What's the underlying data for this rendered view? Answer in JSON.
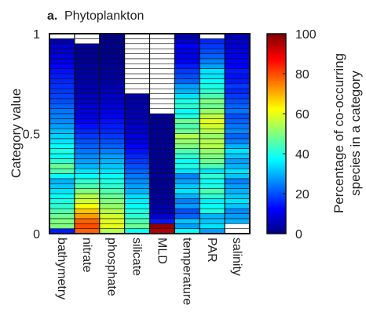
{
  "chart_data": {
    "type": "heatmap",
    "title_prefix": "a.",
    "title": "Phytoplankton",
    "ylabel": "Category value",
    "ylim": [
      0,
      1
    ],
    "y_ticks": [
      {
        "value": 0,
        "label": "0"
      },
      {
        "value": 0.5,
        "label": "0.5"
      },
      {
        "value": 1,
        "label": "1"
      }
    ],
    "categories": [
      "bathymetry",
      "nitrate",
      "phosphate",
      "silicate",
      "MLD",
      "temperature",
      "PAR",
      "salinity"
    ],
    "n_bins": 40,
    "colorbar": {
      "label_line1": "Percentage of co-occurring",
      "label_line2": "species in a category",
      "range": [
        0,
        100
      ],
      "ticks": [
        "0",
        "20",
        "40",
        "60",
        "80",
        "100"
      ],
      "colormap": "jet"
    },
    "missing_color": "#ffffff",
    "columns": [
      {
        "name": "bathymetry",
        "values": [
          15,
          50,
          50,
          48,
          45,
          42,
          40,
          38,
          35,
          32,
          30,
          38,
          45,
          48,
          42,
          38,
          40,
          38,
          35,
          33,
          31,
          28,
          26,
          25,
          24,
          22,
          20,
          19,
          18,
          17,
          16,
          15,
          14,
          12,
          10,
          9,
          8,
          7,
          5,
          null
        ]
      },
      {
        "name": "nitrate",
        "values": [
          78,
          80,
          78,
          72,
          68,
          62,
          58,
          55,
          50,
          45,
          42,
          38,
          35,
          30,
          28,
          26,
          24,
          22,
          20,
          18,
          16,
          14,
          12,
          10,
          9,
          8,
          7,
          6,
          5,
          5,
          4,
          4,
          3,
          3,
          2,
          2,
          2,
          2,
          null,
          null
        ]
      },
      {
        "name": "phosphate",
        "values": [
          55,
          60,
          60,
          58,
          55,
          52,
          50,
          48,
          45,
          42,
          40,
          38,
          35,
          32,
          30,
          28,
          25,
          22,
          20,
          18,
          16,
          15,
          14,
          12,
          10,
          9,
          8,
          7,
          6,
          5,
          4,
          3,
          3,
          2,
          2,
          1,
          1,
          1,
          1,
          1
        ]
      },
      {
        "name": "silicate",
        "values": [
          38,
          48,
          45,
          42,
          40,
          38,
          36,
          34,
          30,
          28,
          26,
          24,
          22,
          20,
          18,
          16,
          14,
          12,
          10,
          9,
          8,
          7,
          6,
          5,
          5,
          4,
          4,
          3,
          null,
          null,
          null,
          null,
          null,
          null,
          null,
          null,
          null,
          null,
          null,
          null
        ]
      },
      {
        "name": "MLD",
        "values": [
          95,
          98,
          15,
          8,
          5,
          4,
          3,
          3,
          2,
          2,
          2,
          2,
          2,
          2,
          2,
          2,
          2,
          2,
          2,
          2,
          2,
          2,
          2,
          2,
          null,
          null,
          null,
          null,
          null,
          null,
          null,
          null,
          null,
          null,
          null,
          null,
          null,
          null,
          null,
          null
        ]
      },
      {
        "name": "temperature",
        "values": [
          38,
          28,
          32,
          22,
          20,
          28,
          25,
          30,
          35,
          32,
          28,
          25,
          35,
          40,
          38,
          42,
          45,
          50,
          52,
          55,
          48,
          45,
          48,
          40,
          38,
          42,
          40,
          35,
          30,
          28,
          22,
          20,
          18,
          15,
          12,
          10,
          10,
          12,
          8,
          5
        ]
      },
      {
        "name": "PAR",
        "values": [
          28,
          35,
          32,
          30,
          40,
          38,
          36,
          42,
          45,
          40,
          38,
          42,
          35,
          45,
          48,
          50,
          52,
          55,
          55,
          52,
          55,
          58,
          60,
          56,
          52,
          48,
          50,
          45,
          42,
          40,
          38,
          35,
          35,
          28,
          25,
          22,
          20,
          18,
          16,
          null
        ]
      },
      {
        "name": "salinity",
        "values": [
          null,
          null,
          30,
          28,
          26,
          32,
          35,
          32,
          30,
          28,
          25,
          32,
          35,
          30,
          28,
          32,
          35,
          30,
          25,
          22,
          26,
          24,
          22,
          20,
          24,
          22,
          20,
          18,
          16,
          18,
          15,
          14,
          15,
          12,
          12,
          10,
          10,
          8,
          8,
          6
        ]
      }
    ]
  }
}
